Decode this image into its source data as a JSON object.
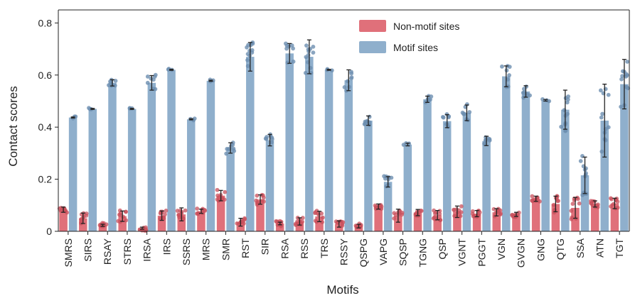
{
  "chart_data": {
    "type": "bar",
    "xlabel": "Motifs",
    "ylabel": "Contact scores",
    "ylim": [
      0,
      0.85
    ],
    "yticks": [
      "0",
      "0.2",
      "0.4",
      "0.6",
      "0.8"
    ],
    "legend_position": "top-center",
    "grid": false,
    "categories": [
      "SMRS",
      "SIRS",
      "RSAY",
      "STRS",
      "IRSA",
      "IRS",
      "SSRS",
      "MRS",
      "SMR",
      "RST",
      "SIR",
      "RSA",
      "RSS",
      "TRS",
      "RSSY",
      "QSPG",
      "VAPG",
      "SQSP",
      "TGNG",
      "QSP",
      "VGNT",
      "PGGT",
      "VGN",
      "GVGN",
      "GNG",
      "QTG",
      "SSA",
      "ATN",
      "TGT"
    ],
    "series": [
      {
        "name": "Non-motif sites",
        "color": "#e0707a",
        "values": [
          0.083,
          0.05,
          0.023,
          0.058,
          0.012,
          0.06,
          0.065,
          0.077,
          0.137,
          0.035,
          0.122,
          0.03,
          0.038,
          0.057,
          0.028,
          0.02,
          0.095,
          0.06,
          0.072,
          0.062,
          0.075,
          0.068,
          0.073,
          0.065,
          0.125,
          0.105,
          0.09,
          0.105,
          0.107
        ],
        "error": [
          0.01,
          0.02,
          0.004,
          0.02,
          0.004,
          0.018,
          0.025,
          0.008,
          0.02,
          0.015,
          0.018,
          0.005,
          0.014,
          0.02,
          0.012,
          0.007,
          0.01,
          0.025,
          0.012,
          0.018,
          0.022,
          0.012,
          0.014,
          0.008,
          0.01,
          0.03,
          0.04,
          0.012,
          0.02
        ]
      },
      {
        "name": "Motif sites",
        "color": "#8fafcc",
        "values": [
          0.437,
          0.47,
          0.57,
          0.47,
          0.57,
          0.62,
          0.43,
          0.578,
          0.32,
          0.67,
          0.35,
          0.683,
          0.67,
          0.62,
          0.58,
          0.425,
          0.19,
          0.333,
          0.507,
          0.423,
          0.455,
          0.347,
          0.595,
          0.537,
          0.503,
          0.467,
          0.215,
          0.425,
          0.565
        ]
      }
    ],
    "motif_error": [
      0.002,
      0.002,
      0.012,
      0.002,
      0.028,
      0.002,
      0.002,
      0.002,
      0.02,
      0.055,
      0.022,
      0.038,
      0.065,
      0.002,
      0.04,
      0.018,
      0.02,
      0.005,
      0.012,
      0.025,
      0.03,
      0.018,
      0.04,
      0.022,
      0.003,
      0.075,
      0.07,
      0.14,
      0.095
    ]
  }
}
